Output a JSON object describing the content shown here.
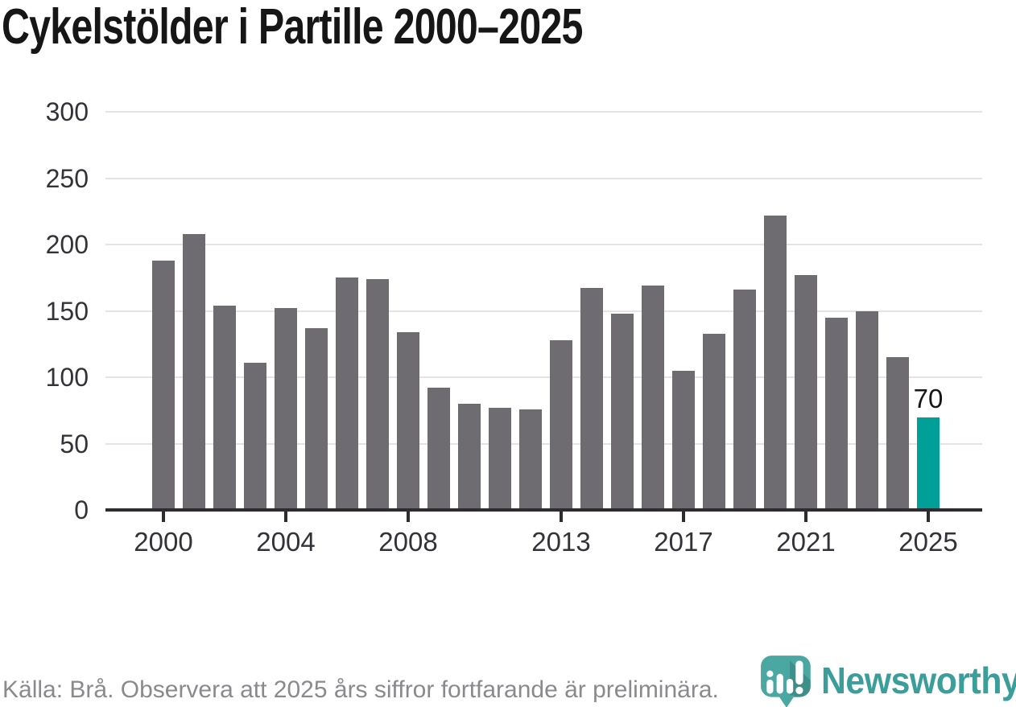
{
  "chart_data": {
    "type": "bar",
    "title": "Cykelstölder i Partille 2000–2025",
    "xlabel": "",
    "ylabel": "",
    "x": [
      2000,
      2001,
      2002,
      2003,
      2004,
      2005,
      2006,
      2007,
      2008,
      2009,
      2010,
      2011,
      2012,
      2013,
      2014,
      2015,
      2016,
      2017,
      2018,
      2019,
      2020,
      2021,
      2022,
      2023,
      2024,
      2025
    ],
    "values": [
      188,
      208,
      154,
      111,
      152,
      137,
      175,
      174,
      134,
      92,
      80,
      77,
      76,
      128,
      167,
      148,
      169,
      105,
      133,
      166,
      222,
      177,
      145,
      150,
      115,
      70
    ],
    "x_tick_labels": [
      2000,
      2004,
      2008,
      2013,
      2017,
      2021,
      2025
    ],
    "y_ticks": [
      0,
      50,
      100,
      150,
      200,
      250,
      300
    ],
    "ylim": [
      0,
      300
    ],
    "grid": true,
    "legend": null,
    "bar_color": "#6e6c71",
    "highlight_index": 25,
    "highlight_color": "#00a099",
    "highlight_value_label": "70"
  },
  "footer": {
    "source_note": "Källa: Brå. Observera att 2025 års siffror fortfarande är preliminära."
  },
  "branding": {
    "logo_text": "Newsworthy",
    "logo_text_color": "#3b9e9b",
    "icon": "bar-chart-map-pin-icon",
    "icon_color": "#4ba7a2",
    "icon_shadow_color": "#3e8e8a"
  }
}
